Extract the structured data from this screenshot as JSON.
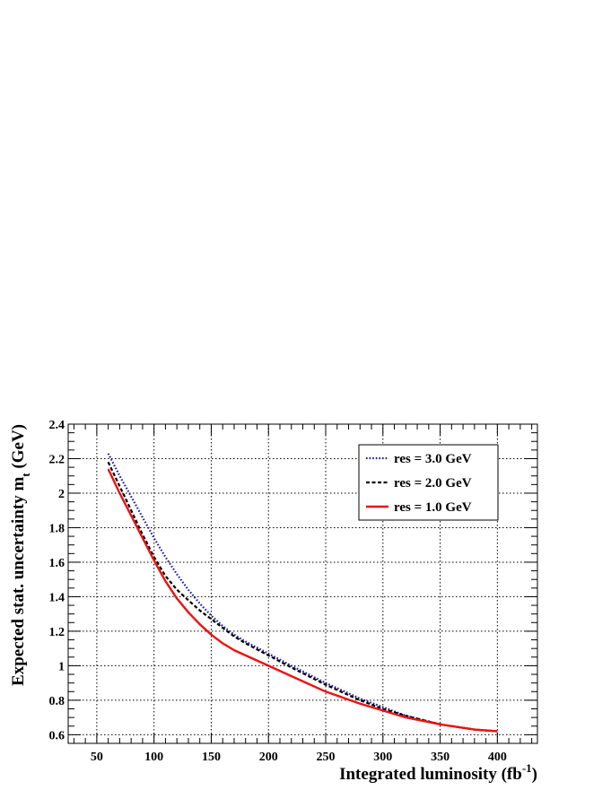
{
  "chart_data": {
    "type": "line",
    "title": "",
    "xlabel": {
      "main": "Integrated luminosity (fb",
      "sup": "-1",
      "tail": ")"
    },
    "ylabel": {
      "main": "Expected stat. uncertainty m",
      "sub": "t",
      "tail": " (GeV)"
    },
    "xlim": [
      25,
      435
    ],
    "ylim": [
      0.55,
      2.4
    ],
    "x_ticks": [
      "50",
      "100",
      "150",
      "200",
      "250",
      "300",
      "350",
      "400"
    ],
    "y_ticks": [
      "0.6",
      "0.8",
      "1",
      "1.2",
      "1.4",
      "1.6",
      "1.8",
      "2",
      "2.2",
      "2.4"
    ],
    "grid": true,
    "legend_position": "top-right",
    "series": [
      {
        "name": "res = 3.0 GeV",
        "color": "#1a1aa0",
        "style": "dotted",
        "x": [
          60,
          70,
          80,
          90,
          100,
          110,
          120,
          130,
          140,
          150,
          160,
          170,
          180,
          200,
          220,
          250,
          280,
          300,
          320,
          350,
          380,
          400
        ],
        "y": [
          2.23,
          2.1,
          1.98,
          1.86,
          1.74,
          1.63,
          1.53,
          1.44,
          1.36,
          1.29,
          1.23,
          1.18,
          1.14,
          1.07,
          1.0,
          0.9,
          0.81,
          0.76,
          0.71,
          0.66,
          0.63,
          0.62
        ]
      },
      {
        "name": "res = 2.0 GeV",
        "color": "#000000",
        "style": "dashed",
        "x": [
          60,
          70,
          80,
          90,
          100,
          110,
          120,
          130,
          140,
          150,
          160,
          170,
          180,
          200,
          220,
          250,
          280,
          300,
          320,
          350,
          380,
          400
        ],
        "y": [
          2.18,
          2.04,
          1.9,
          1.76,
          1.63,
          1.52,
          1.44,
          1.38,
          1.32,
          1.27,
          1.22,
          1.17,
          1.13,
          1.06,
          0.99,
          0.89,
          0.8,
          0.75,
          0.71,
          0.66,
          0.63,
          0.62
        ]
      },
      {
        "name": "res = 1.0 GeV",
        "color": "#ee1111",
        "style": "solid",
        "x": [
          60,
          70,
          80,
          90,
          100,
          110,
          120,
          130,
          140,
          150,
          160,
          170,
          180,
          200,
          220,
          250,
          280,
          300,
          320,
          350,
          380,
          400
        ],
        "y": [
          2.14,
          2.0,
          1.87,
          1.74,
          1.61,
          1.49,
          1.39,
          1.31,
          1.24,
          1.18,
          1.13,
          1.09,
          1.06,
          1.0,
          0.94,
          0.85,
          0.78,
          0.74,
          0.7,
          0.66,
          0.63,
          0.62
        ]
      }
    ]
  }
}
